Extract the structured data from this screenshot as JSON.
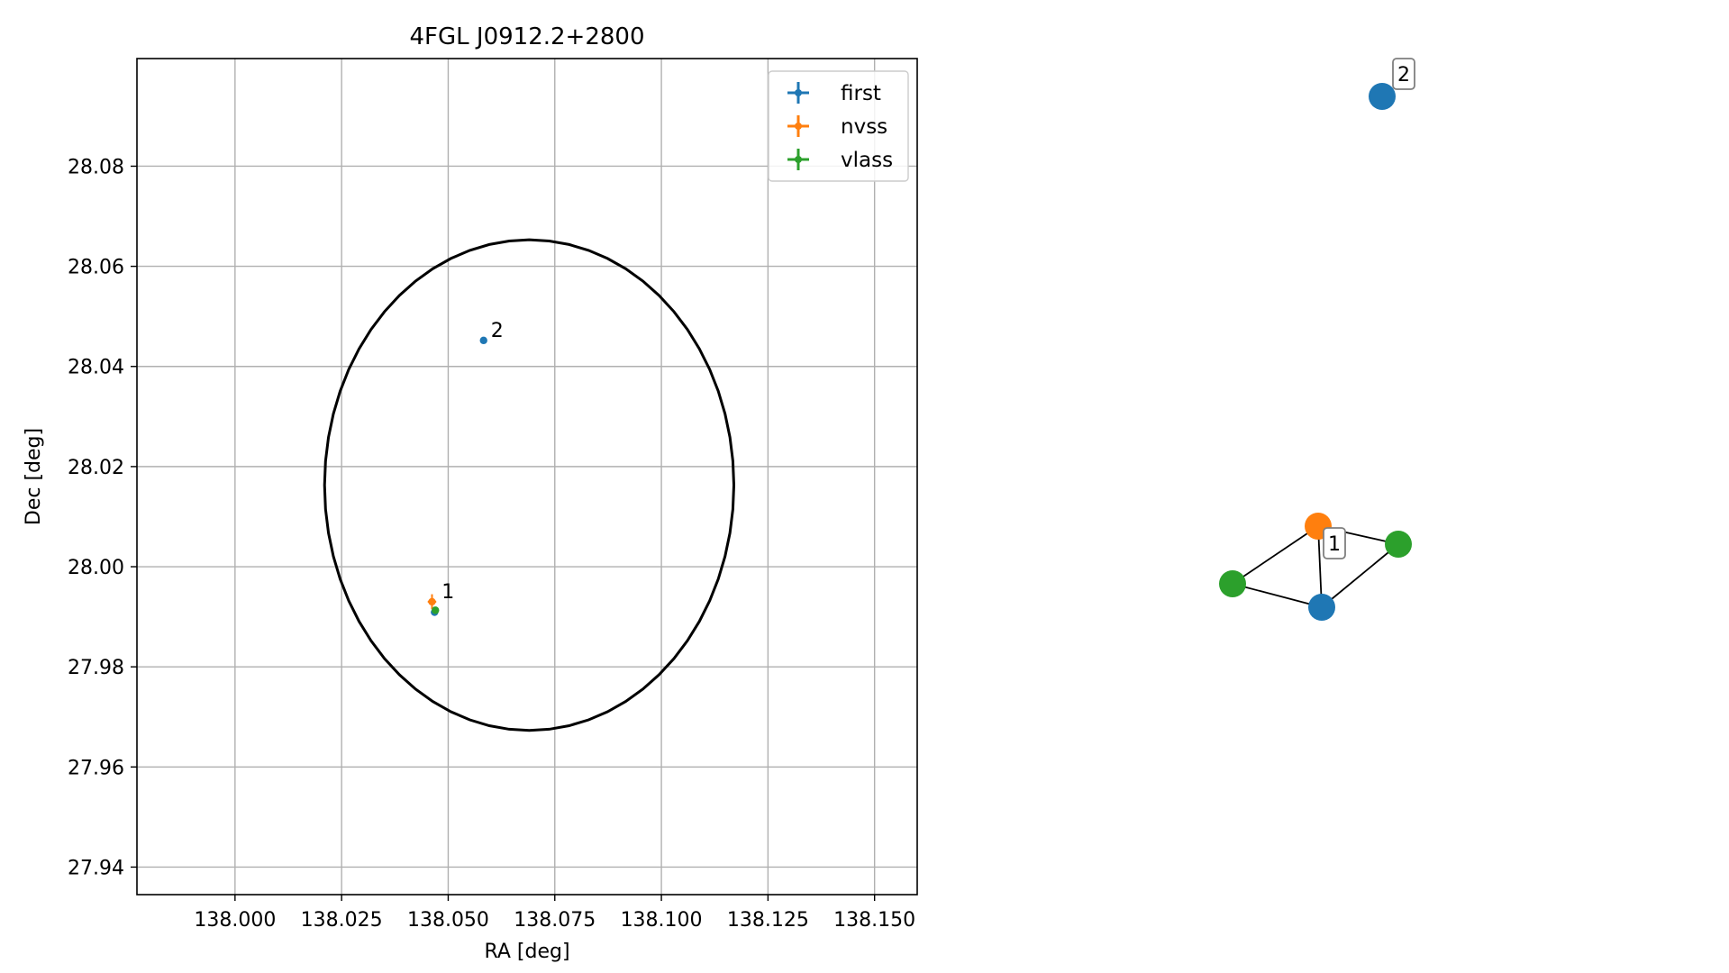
{
  "chart_data": [
    {
      "type": "scatter",
      "title": "4FGL J0912.2+2800",
      "xlabel": "RA [deg]",
      "ylabel": "Dec [deg]",
      "xlim": [
        137.977,
        138.16
      ],
      "ylim": [
        27.9345,
        28.1015
      ],
      "xticks": [
        138.0,
        138.025,
        138.05,
        138.075,
        138.1,
        138.125,
        138.15
      ],
      "xtick_labels": [
        "138.000",
        "138.025",
        "138.050",
        "138.075",
        "138.100",
        "138.125",
        "138.150"
      ],
      "yticks": [
        27.94,
        27.96,
        27.98,
        28.0,
        28.02,
        28.04,
        28.06,
        28.08
      ],
      "ytick_labels": [
        "27.94",
        "27.96",
        "27.98",
        "28.00",
        "28.02",
        "28.04",
        "28.06",
        "28.08"
      ],
      "grid": true,
      "legend_position": "top-right",
      "series": [
        {
          "name": "first",
          "color": "#1f77b4",
          "points": [
            {
              "x": 138.0583,
              "y": 28.0452,
              "xerr": 0.0003,
              "yerr": 0.0003
            },
            {
              "x": 138.0468,
              "y": 27.9909,
              "xerr": 0.0003,
              "yerr": 0.0003
            }
          ]
        },
        {
          "name": "nvss",
          "color": "#ff7f0e",
          "points": [
            {
              "x": 138.0462,
              "y": 27.993,
              "xerr": 0.001,
              "yerr": 0.0015
            }
          ]
        },
        {
          "name": "vlass",
          "color": "#2ca02c",
          "points": [
            {
              "x": 138.047,
              "y": 27.9913,
              "xerr": 0.0003,
              "yerr": 0.0003
            }
          ]
        }
      ],
      "annotations": [
        {
          "text": "1",
          "x": 138.0468,
          "y": 27.993
        },
        {
          "text": "2",
          "x": 138.0583,
          "y": 28.0452
        }
      ],
      "error_ellipse": {
        "center": [
          138.069,
          28.0163
        ],
        "semi_axes_deg": [
          0.048,
          0.049
        ],
        "color": "#000000"
      }
    },
    {
      "type": "graph",
      "nodes": [
        {
          "id": "n_orange",
          "color": "#ff7f0e"
        },
        {
          "id": "n_green_left",
          "color": "#2ca02c"
        },
        {
          "id": "n_green_right",
          "color": "#2ca02c"
        },
        {
          "id": "n_blue_bottom",
          "color": "#1f77b4"
        },
        {
          "id": "n_blue_top",
          "color": "#1f77b4"
        }
      ],
      "edges": [
        [
          "n_orange",
          "n_green_left"
        ],
        [
          "n_orange",
          "n_green_right"
        ],
        [
          "n_orange",
          "n_blue_bottom"
        ],
        [
          "n_green_left",
          "n_blue_bottom"
        ],
        [
          "n_green_right",
          "n_blue_bottom"
        ]
      ],
      "labels": [
        {
          "text": "1"
        },
        {
          "text": "2"
        }
      ]
    }
  ]
}
